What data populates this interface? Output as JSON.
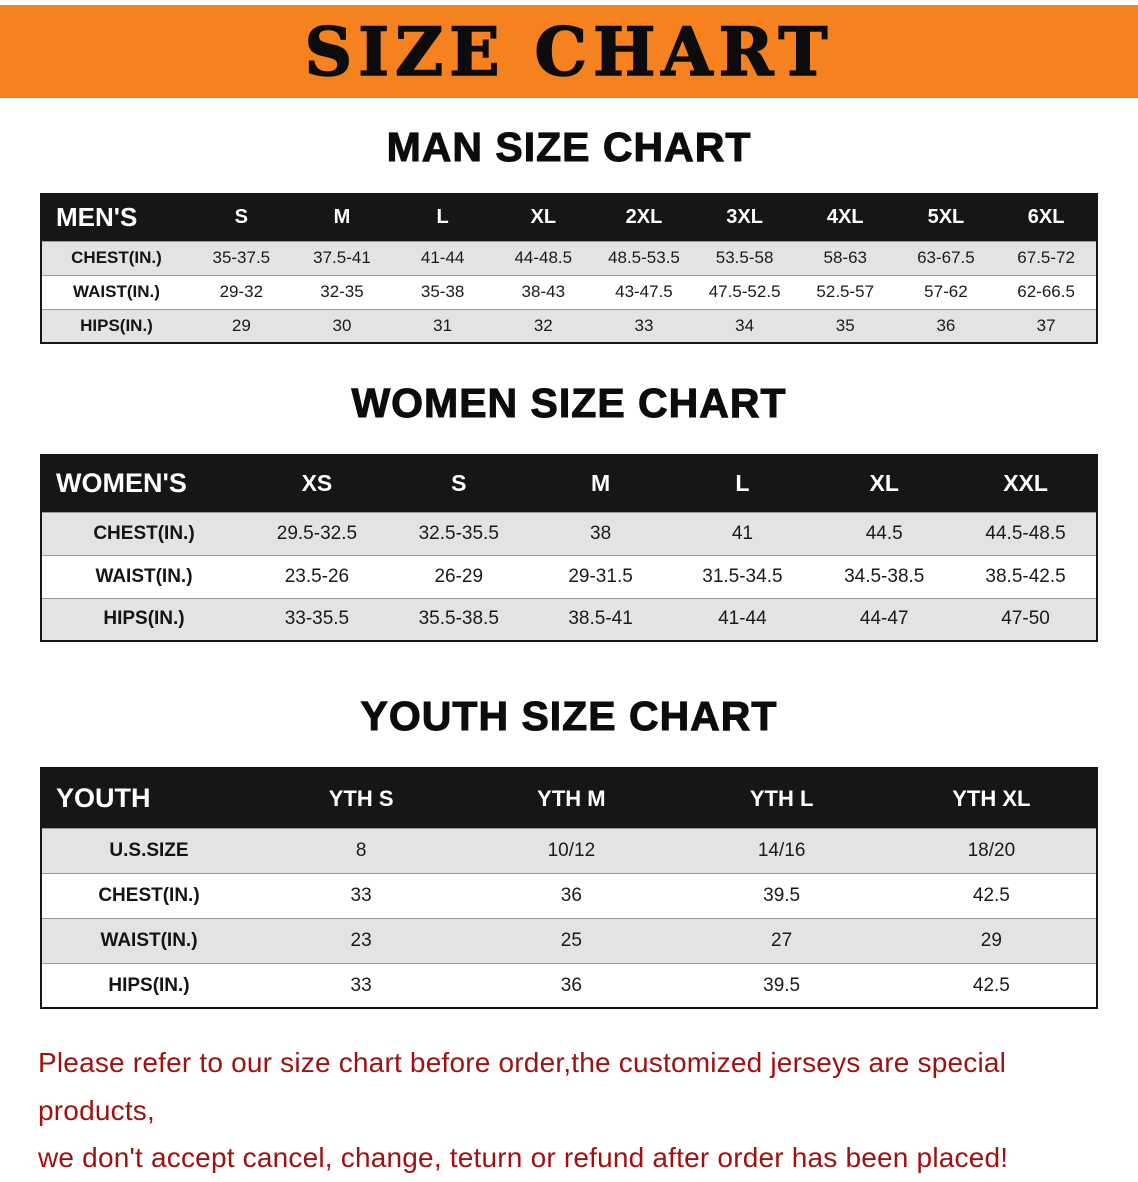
{
  "banner": {
    "title": "SIZE CHART"
  },
  "sections": [
    {
      "heading": "MAN SIZE CHART",
      "table": {
        "header": [
          "MEN'S",
          "S",
          "M",
          "L",
          "XL",
          "2XL",
          "3XL",
          "4XL",
          "5XL",
          "6XL"
        ],
        "rows": [
          [
            "CHEST(IN.)",
            "35-37.5",
            "37.5-41",
            "41-44",
            "44-48.5",
            "48.5-53.5",
            "53.5-58",
            "58-63",
            "63-67.5",
            "67.5-72"
          ],
          [
            "WAIST(IN.)",
            "29-32",
            "32-35",
            "35-38",
            "38-43",
            "43-47.5",
            "47.5-52.5",
            "52.5-57",
            "57-62",
            "62-66.5"
          ],
          [
            "HIPS(IN.)",
            "29",
            "30",
            "31",
            "32",
            "33",
            "34",
            "35",
            "36",
            "37"
          ]
        ]
      }
    },
    {
      "heading": "WOMEN SIZE CHART",
      "table": {
        "header": [
          "WOMEN'S",
          "XS",
          "S",
          "M",
          "L",
          "XL",
          "XXL"
        ],
        "rows": [
          [
            "CHEST(IN.)",
            "29.5-32.5",
            "32.5-35.5",
            "38",
            "41",
            "44.5",
            "44.5-48.5"
          ],
          [
            "WAIST(IN.)",
            "23.5-26",
            "26-29",
            "29-31.5",
            "31.5-34.5",
            "34.5-38.5",
            "38.5-42.5"
          ],
          [
            "HIPS(IN.)",
            "33-35.5",
            "35.5-38.5",
            "38.5-41",
            "41-44",
            "44-47",
            "47-50"
          ]
        ]
      }
    },
    {
      "heading": "YOUTH SIZE CHART",
      "table": {
        "header": [
          "YOUTH",
          "YTH S",
          "YTH M",
          "YTH L",
          "YTH XL"
        ],
        "rows": [
          [
            "U.S.SIZE",
            "8",
            "10/12",
            "14/16",
            "18/20"
          ],
          [
            "CHEST(IN.)",
            "33",
            "36",
            "39.5",
            "42.5"
          ],
          [
            "WAIST(IN.)",
            "23",
            "25",
            "27",
            "29"
          ],
          [
            "HIPS(IN.)",
            "33",
            "36",
            "39.5",
            "42.5"
          ]
        ]
      }
    }
  ],
  "disclaimer": {
    "line1": "Please refer to our size chart before order,the customized jerseys are special products,",
    "line2": "we don't accept cancel, change, teturn or refund after order has been placed!"
  },
  "colors": {
    "banner_orange": "#F5821F",
    "table_header_black": "#161616",
    "row_stripe_gray": "#E3E3E3",
    "disclaimer_red": "#9E1111"
  }
}
